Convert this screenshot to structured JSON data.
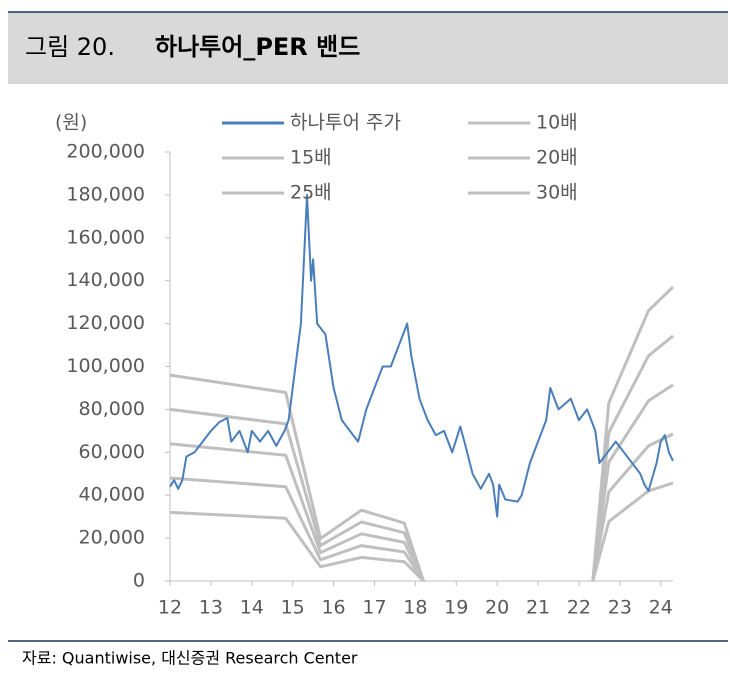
{
  "figure_label": "그림 20.",
  "source": "자료: Quantiwise, 대신증권 Research Center",
  "chart_data": {
    "type": "line",
    "title": "하나투어_PER 밴드",
    "y_label": "(원)",
    "xlim": [
      12,
      24.3
    ],
    "xticks": [
      12,
      13,
      14,
      15,
      16,
      17,
      18,
      19,
      20,
      21,
      22,
      23,
      24
    ],
    "ylim": [
      0,
      200000
    ],
    "yticks": [
      0,
      {
        "value": 20000,
        "label": "20,000"
      },
      {
        "value": 40000,
        "label": "40,000"
      },
      {
        "value": 60000,
        "label": "60,000"
      },
      {
        "value": 80000,
        "label": "80,000"
      },
      {
        "value": 100000,
        "label": "100,000"
      },
      {
        "value": 120000,
        "label": "120,000"
      },
      {
        "value": 140000,
        "label": "140,000"
      },
      {
        "value": 160000,
        "label": "160,000"
      },
      {
        "value": 180000,
        "label": "180,000"
      },
      {
        "value": 200000,
        "label": "200,000"
      }
    ],
    "grid": false,
    "series": [
      {
        "name": "하나투어 주가",
        "color": "#4a7ebb",
        "x": [
          12.0,
          12.1,
          12.2,
          12.3,
          12.4,
          12.6,
          12.8,
          13.0,
          13.2,
          13.4,
          13.5,
          13.7,
          13.9,
          14.0,
          14.2,
          14.4,
          14.6,
          14.8,
          14.9,
          15.0,
          15.1,
          15.2,
          15.3,
          15.35,
          15.45,
          15.5,
          15.6,
          15.8,
          16.0,
          16.2,
          16.4,
          16.6,
          16.8,
          17.0,
          17.2,
          17.4,
          17.6,
          17.8,
          17.9,
          18.1,
          18.3,
          18.5,
          18.7,
          18.9,
          19.1,
          19.2,
          19.4,
          19.6,
          19.8,
          19.9,
          20.0,
          20.05,
          20.2,
          20.5,
          20.6,
          20.8,
          21.0,
          21.2,
          21.3,
          21.5,
          21.8,
          22.0,
          22.2,
          22.4,
          22.5,
          22.7,
          22.9,
          23.1,
          23.3,
          23.5,
          23.6,
          23.7,
          23.9,
          24.0,
          24.1,
          24.2,
          24.3
        ],
        "values": [
          44000,
          47000,
          43000,
          47000,
          58000,
          60000,
          65000,
          70000,
          74000,
          76000,
          65000,
          70000,
          60000,
          70000,
          65000,
          70000,
          63000,
          70000,
          75000,
          90000,
          105000,
          120000,
          160000,
          180000,
          140000,
          150000,
          120000,
          115000,
          90000,
          75000,
          70000,
          65000,
          80000,
          90000,
          100000,
          100000,
          110000,
          120000,
          105000,
          85000,
          75000,
          68000,
          70000,
          60000,
          72000,
          65000,
          50000,
          43000,
          50000,
          45000,
          30000,
          45000,
          38000,
          37000,
          40000,
          55000,
          65000,
          75000,
          90000,
          80000,
          85000,
          75000,
          80000,
          70000,
          55000,
          60000,
          65000,
          60000,
          55000,
          50000,
          45000,
          42000,
          55000,
          65000,
          68000,
          60000,
          56000
        ]
      },
      {
        "name": "10배",
        "color": "#bfbfbf",
        "x": [
          12,
          14.83,
          15.68,
          16.68,
          17.73,
          18.2,
          null,
          22.34,
          22.73,
          23.7,
          24.3
        ],
        "values": [
          32000,
          29300,
          6600,
          11000,
          9000,
          0,
          null,
          0,
          27700,
          42000,
          45700
        ]
      },
      {
        "name": "15배",
        "color": "#bfbfbf",
        "x": [
          12,
          14.83,
          15.68,
          16.68,
          17.73,
          18.2,
          null,
          22.34,
          22.73,
          23.7,
          24.3
        ],
        "values": [
          48000,
          43950,
          9900,
          16500,
          13500,
          0,
          null,
          0,
          41550,
          63000,
          68550
        ]
      },
      {
        "name": "20배",
        "color": "#bfbfbf",
        "x": [
          12,
          14.83,
          15.68,
          16.68,
          17.73,
          18.2,
          null,
          22.34,
          22.73,
          23.7,
          24.3
        ],
        "values": [
          64000,
          58600,
          13200,
          22000,
          18000,
          0,
          null,
          0,
          55400,
          84000,
          91400
        ]
      },
      {
        "name": "25배",
        "color": "#bfbfbf",
        "x": [
          12,
          14.83,
          15.68,
          16.68,
          17.73,
          18.2,
          null,
          22.34,
          22.73,
          23.7,
          24.3
        ],
        "values": [
          80000,
          73250,
          16500,
          27500,
          22500,
          0,
          null,
          0,
          69250,
          105000,
          114250
        ]
      },
      {
        "name": "30배",
        "color": "#bfbfbf",
        "x": [
          12,
          14.83,
          15.68,
          16.68,
          17.73,
          18.2,
          null,
          22.34,
          22.73,
          23.7,
          24.3
        ],
        "values": [
          96000,
          87900,
          19800,
          33000,
          27000,
          0,
          null,
          0,
          83100,
          126000,
          137100
        ]
      }
    ]
  }
}
